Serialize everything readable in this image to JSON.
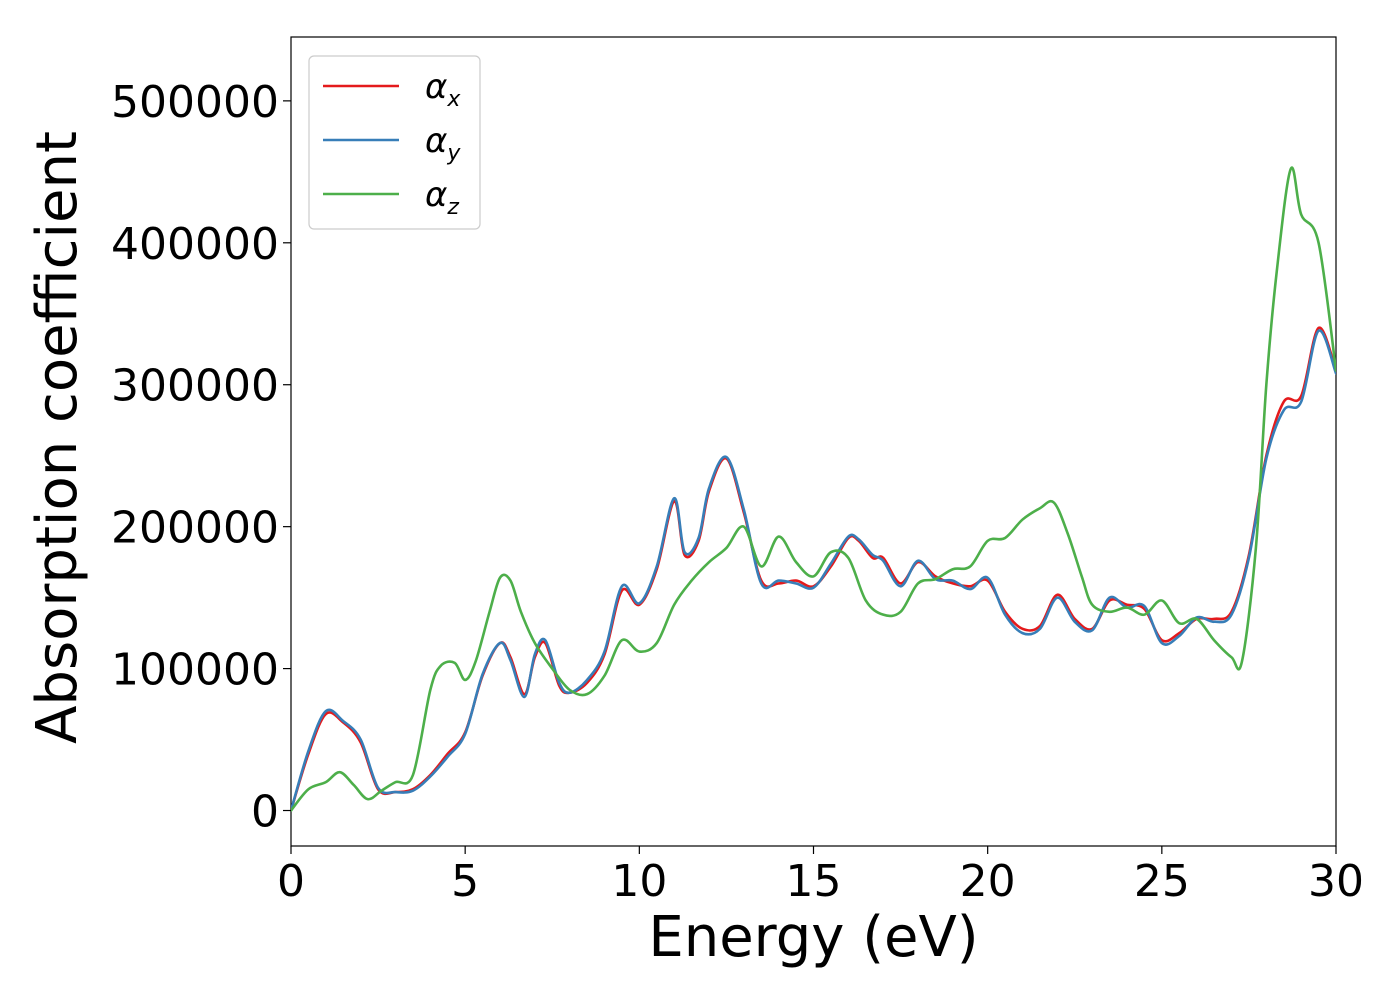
{
  "chart_data": {
    "type": "line",
    "title": "",
    "xlabel": "Energy (eV)",
    "ylabel": "Absorption coefficient",
    "xlim": [
      0,
      30
    ],
    "ylim": [
      -25000,
      545000
    ],
    "xticks": [
      0,
      5,
      10,
      15,
      20,
      25,
      30
    ],
    "xtick_labels": [
      "0",
      "5",
      "10",
      "15",
      "20",
      "25",
      "30"
    ],
    "yticks": [
      0,
      100000,
      200000,
      300000,
      400000,
      500000
    ],
    "ytick_labels": [
      "0",
      "100000",
      "200000",
      "300000",
      "400000",
      "500000"
    ],
    "grid": false,
    "legend_position": "top-left",
    "series": [
      {
        "name": "α_x",
        "label_base": "α",
        "label_sub": "x",
        "color": "#e41a1c",
        "x": [
          0,
          0.5,
          1.0,
          1.5,
          2.0,
          2.5,
          3.0,
          3.5,
          4.0,
          4.5,
          5.0,
          5.5,
          6.0,
          6.3,
          6.7,
          7.0,
          7.3,
          7.7,
          8.0,
          8.5,
          9.0,
          9.5,
          10.0,
          10.5,
          11.0,
          11.3,
          11.7,
          12.0,
          12.5,
          13.0,
          13.5,
          14.0,
          14.5,
          15.0,
          15.5,
          16.0,
          16.3,
          16.7,
          17.0,
          17.5,
          18.0,
          18.5,
          19.0,
          19.5,
          20.0,
          20.5,
          21.0,
          21.5,
          22.0,
          22.5,
          23.0,
          23.5,
          24.0,
          24.5,
          25.0,
          25.5,
          26.0,
          26.5,
          27.0,
          27.5,
          28.0,
          28.5,
          29.0,
          29.5,
          30.0
        ],
        "y": [
          0,
          40000,
          68000,
          62000,
          48000,
          15000,
          13000,
          15000,
          25000,
          40000,
          55000,
          95000,
          118000,
          108000,
          82000,
          108000,
          118000,
          88000,
          83000,
          90000,
          110000,
          155000,
          145000,
          170000,
          218000,
          180000,
          190000,
          225000,
          248000,
          210000,
          162000,
          160000,
          162000,
          158000,
          172000,
          192000,
          190000,
          178000,
          178000,
          160000,
          175000,
          165000,
          160000,
          158000,
          162000,
          140000,
          128000,
          130000,
          152000,
          135000,
          128000,
          148000,
          145000,
          142000,
          120000,
          125000,
          135000,
          135000,
          140000,
          180000,
          250000,
          288000,
          292000,
          340000,
          310000
        ]
      },
      {
        "name": "α_y",
        "label_base": "α",
        "label_sub": "y",
        "color": "#377eb8",
        "x": [
          0,
          0.5,
          1.0,
          1.5,
          2.0,
          2.5,
          3.0,
          3.5,
          4.0,
          4.5,
          5.0,
          5.5,
          6.0,
          6.3,
          6.7,
          7.0,
          7.3,
          7.7,
          8.0,
          8.5,
          9.0,
          9.5,
          10.0,
          10.5,
          11.0,
          11.3,
          11.7,
          12.0,
          12.5,
          13.0,
          13.5,
          14.0,
          14.5,
          15.0,
          15.5,
          16.0,
          16.3,
          16.7,
          17.0,
          17.5,
          18.0,
          18.5,
          19.0,
          19.5,
          20.0,
          20.5,
          21.0,
          21.5,
          22.0,
          22.5,
          23.0,
          23.5,
          24.0,
          24.5,
          25.0,
          25.5,
          26.0,
          26.5,
          27.0,
          27.5,
          28.0,
          28.5,
          29.0,
          29.5,
          30.0
        ],
        "y": [
          0,
          42000,
          70000,
          63000,
          50000,
          16000,
          13000,
          14000,
          24000,
          38000,
          54000,
          96000,
          118000,
          106000,
          80000,
          110000,
          120000,
          90000,
          83000,
          92000,
          112000,
          158000,
          146000,
          172000,
          220000,
          182000,
          192000,
          227000,
          249000,
          212000,
          160000,
          162000,
          160000,
          157000,
          174000,
          193000,
          191000,
          180000,
          176000,
          158000,
          176000,
          163000,
          162000,
          156000,
          164000,
          138000,
          125000,
          128000,
          150000,
          133000,
          127000,
          150000,
          143000,
          144000,
          118000,
          123000,
          136000,
          133000,
          138000,
          178000,
          248000,
          282000,
          288000,
          338000,
          308000
        ]
      },
      {
        "name": "α_z",
        "label_base": "α",
        "label_sub": "z",
        "color": "#4daf4a",
        "x": [
          0,
          0.5,
          1.0,
          1.4,
          1.8,
          2.2,
          2.6,
          3.0,
          3.5,
          4.0,
          4.3,
          4.7,
          5.0,
          5.3,
          5.7,
          6.0,
          6.3,
          6.6,
          7.0,
          7.5,
          8.0,
          8.5,
          9.0,
          9.5,
          10.0,
          10.5,
          11.0,
          11.5,
          12.0,
          12.5,
          13.0,
          13.5,
          14.0,
          14.5,
          15.0,
          15.5,
          16.0,
          16.5,
          17.0,
          17.5,
          18.0,
          18.5,
          19.0,
          19.5,
          20.0,
          20.5,
          21.0,
          21.5,
          21.9,
          22.3,
          22.7,
          23.0,
          23.5,
          24.0,
          24.5,
          25.0,
          25.5,
          26.0,
          26.5,
          27.0,
          27.3,
          27.7,
          28.0,
          28.3,
          28.7,
          29.0,
          29.5,
          30.0
        ],
        "y": [
          0,
          15000,
          20000,
          27000,
          18000,
          8000,
          14000,
          20000,
          25000,
          85000,
          102000,
          104000,
          92000,
          105000,
          140000,
          164000,
          162000,
          140000,
          118000,
          100000,
          85000,
          82000,
          95000,
          120000,
          112000,
          118000,
          145000,
          162000,
          175000,
          185000,
          200000,
          172000,
          193000,
          175000,
          165000,
          182000,
          178000,
          148000,
          138000,
          140000,
          160000,
          163000,
          170000,
          172000,
          190000,
          192000,
          205000,
          213000,
          217000,
          195000,
          165000,
          145000,
          140000,
          143000,
          138000,
          148000,
          132000,
          135000,
          120000,
          108000,
          105000,
          185000,
          300000,
          380000,
          452000,
          420000,
          400000,
          310000
        ]
      }
    ]
  }
}
